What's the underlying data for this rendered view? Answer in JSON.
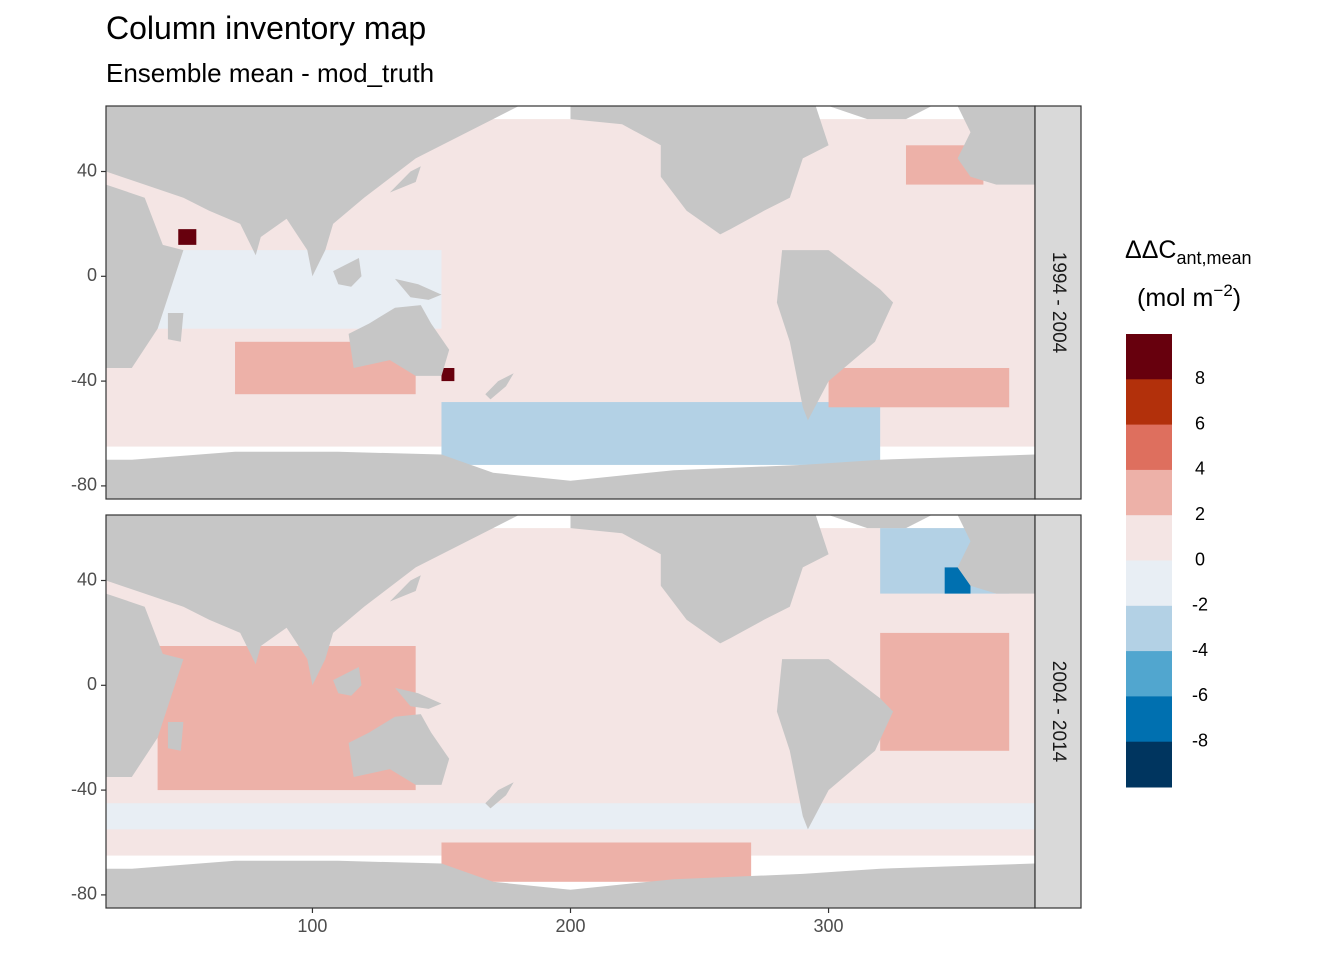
{
  "chart_data": {
    "type": "heatmap",
    "title": "Column inventory map",
    "subtitle": "Ensemble mean - mod_truth",
    "x_ticks": [
      100,
      200,
      300
    ],
    "y_ticks": [
      40,
      0,
      -40,
      -80
    ],
    "xlim": [
      20,
      380
    ],
    "ylim": [
      -85,
      65
    ],
    "grid": false,
    "facets": [
      {
        "label": "1994 - 2004",
        "description": "mostly small positive values (0 to 2); Southern Ocean south of Australia / South Pacific -2 to -4; positive 2-4 bands in Indian Ocean and South Atlantic; extremes near Arabian Sea and east Australia",
        "regions": [
          {
            "lon": [
              20,
              380
            ],
            "lat": [
              -65,
              60
            ],
            "value": 1
          },
          {
            "lon": [
              150,
              320
            ],
            "lat": [
              -72,
              -48
            ],
            "value": -3
          },
          {
            "lon": [
              70,
              140
            ],
            "lat": [
              -45,
              -25
            ],
            "value": 3
          },
          {
            "lon": [
              300,
              370
            ],
            "lat": [
              -50,
              -35
            ],
            "value": 3
          },
          {
            "lon": [
              330,
              360
            ],
            "lat": [
              35,
              50
            ],
            "value": 3
          },
          {
            "lon": [
              20,
              150
            ],
            "lat": [
              -20,
              10
            ],
            "value": -1
          },
          {
            "lon": [
              48,
              55
            ],
            "lat": [
              12,
              18
            ],
            "value": 9
          },
          {
            "lon": [
              150,
              155
            ],
            "lat": [
              -40,
              -35
            ],
            "value": 9
          }
        ]
      },
      {
        "label": "2004 - 2014",
        "description": "Indian Ocean and tropical Atlantic 2-4; North Atlantic -2 to -6; Southern Ocean south of Pacific 2-4; remainder 0 to 2 with some -2 to 0 patches",
        "regions": [
          {
            "lon": [
              20,
              380
            ],
            "lat": [
              -65,
              60
            ],
            "value": 1
          },
          {
            "lon": [
              40,
              140
            ],
            "lat": [
              -40,
              15
            ],
            "value": 3
          },
          {
            "lon": [
              320,
              370
            ],
            "lat": [
              -25,
              20
            ],
            "value": 3
          },
          {
            "lon": [
              320,
              370
            ],
            "lat": [
              35,
              60
            ],
            "value": -3
          },
          {
            "lon": [
              150,
              270
            ],
            "lat": [
              -75,
              -60
            ],
            "value": 3
          },
          {
            "lon": [
              20,
              380
            ],
            "lat": [
              -55,
              -45
            ],
            "value": -1
          },
          {
            "lon": [
              345,
              355
            ],
            "lat": [
              35,
              45
            ],
            "value": -7
          }
        ]
      }
    ],
    "legend": {
      "title_main": "ΔΔC",
      "title_sub": "ant,mean",
      "unit_main": "(mol m",
      "unit_sup": "−2",
      "unit_close": ")",
      "placement": "right",
      "labels": [
        "8",
        "6",
        "4",
        "2",
        "0",
        "-2",
        "-4",
        "-6",
        "-8"
      ],
      "colors": [
        "#67000D",
        "#B2300B",
        "#DE6F5E",
        "#EDB1A8",
        "#F4E5E4",
        "#E8EEF4",
        "#B3D1E5",
        "#51A6CF",
        "#0070B0",
        "#00355F"
      ]
    },
    "colors": {
      "land": "#C6C6C6",
      "strip": "#D9D9D9",
      "frame": "#333333"
    }
  }
}
